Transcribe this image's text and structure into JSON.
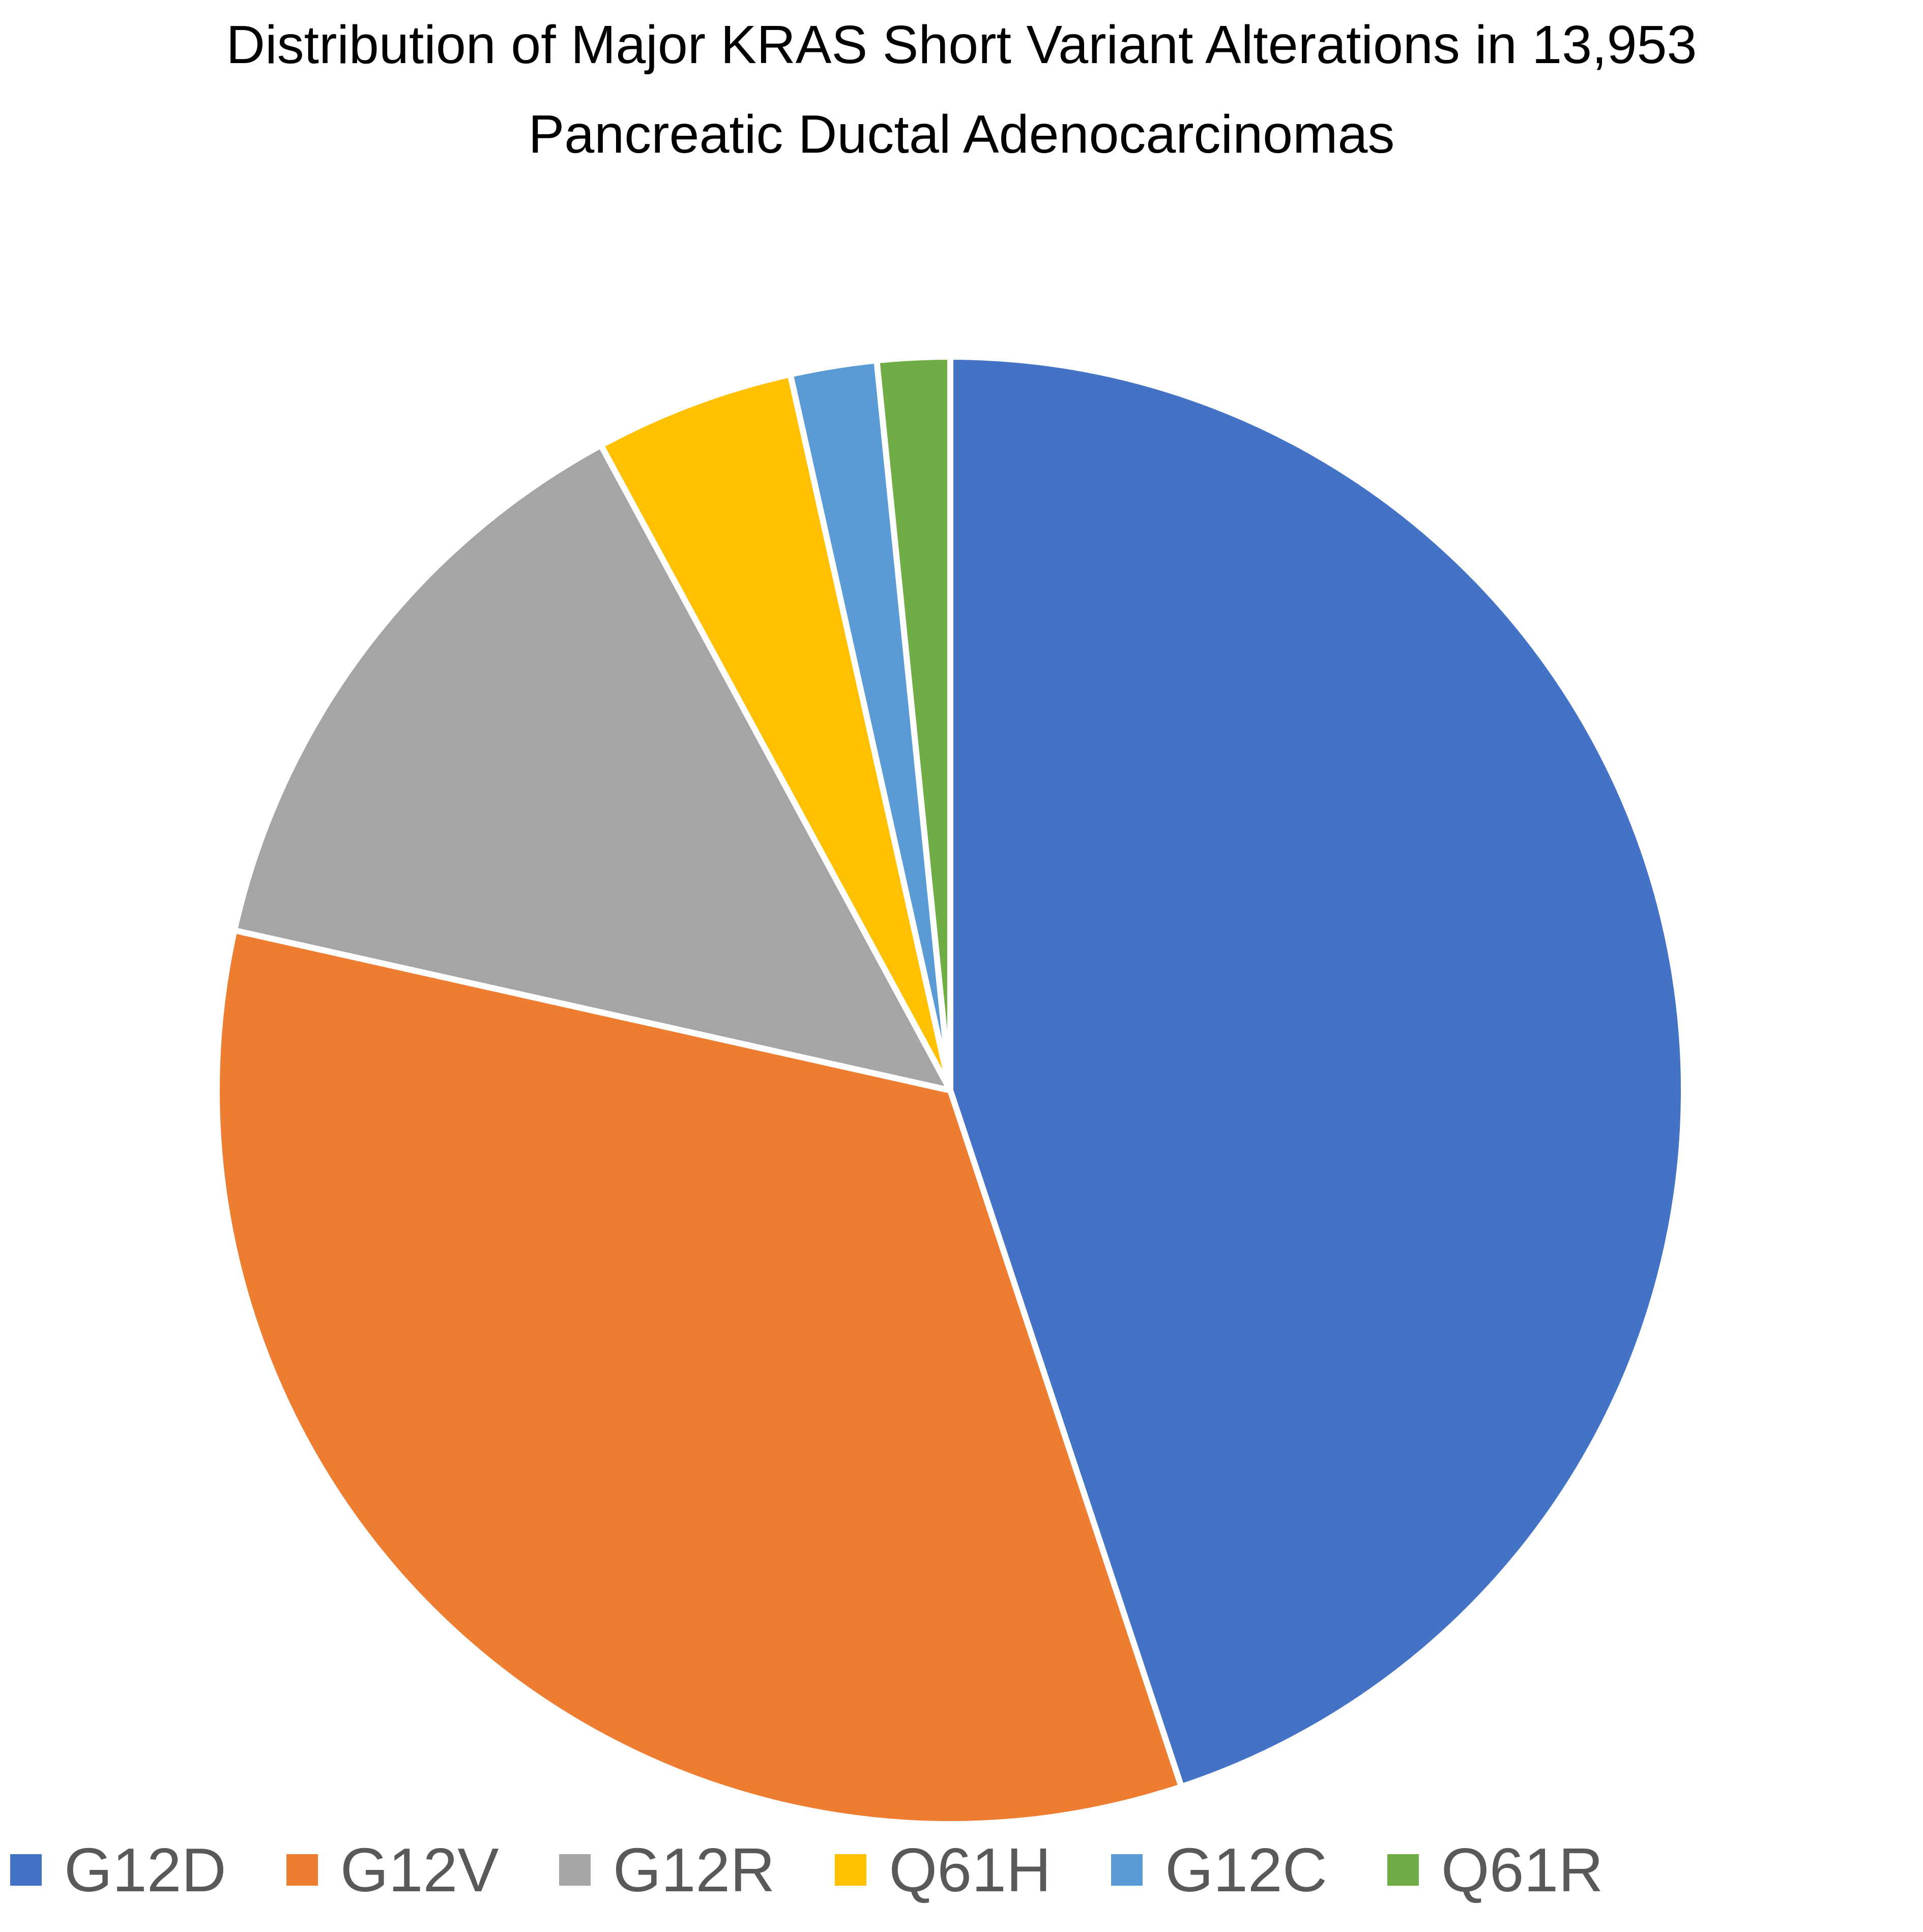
{
  "chart_data": {
    "type": "pie",
    "title": "Distribution of Major KRAS Short Variant Alterations in 13,953 Pancreatic Ductal Adenocarcinomas",
    "title_lines": [
      "Distribution of Major KRAS Short Variant Alterations in 13,953",
      "Pancreatic Ductal Adenocarcinomas"
    ],
    "start_angle_deg": 0,
    "direction": "clockwise",
    "legend_position": "bottom",
    "slices": [
      {
        "label": "G12D",
        "value": 44.9,
        "color": "#4472C4"
      },
      {
        "label": "G12V",
        "value": 33.6,
        "color": "#ED7D31"
      },
      {
        "label": "G12R",
        "value": 13.6,
        "color": "#A5A5A5"
      },
      {
        "label": "Q61H",
        "value": 4.4,
        "color": "#FFC000"
      },
      {
        "label": "G12C",
        "value": 1.9,
        "color": "#5B9BD5"
      },
      {
        "label": "Q61R",
        "value": 1.6,
        "color": "#70AD47"
      }
    ]
  }
}
